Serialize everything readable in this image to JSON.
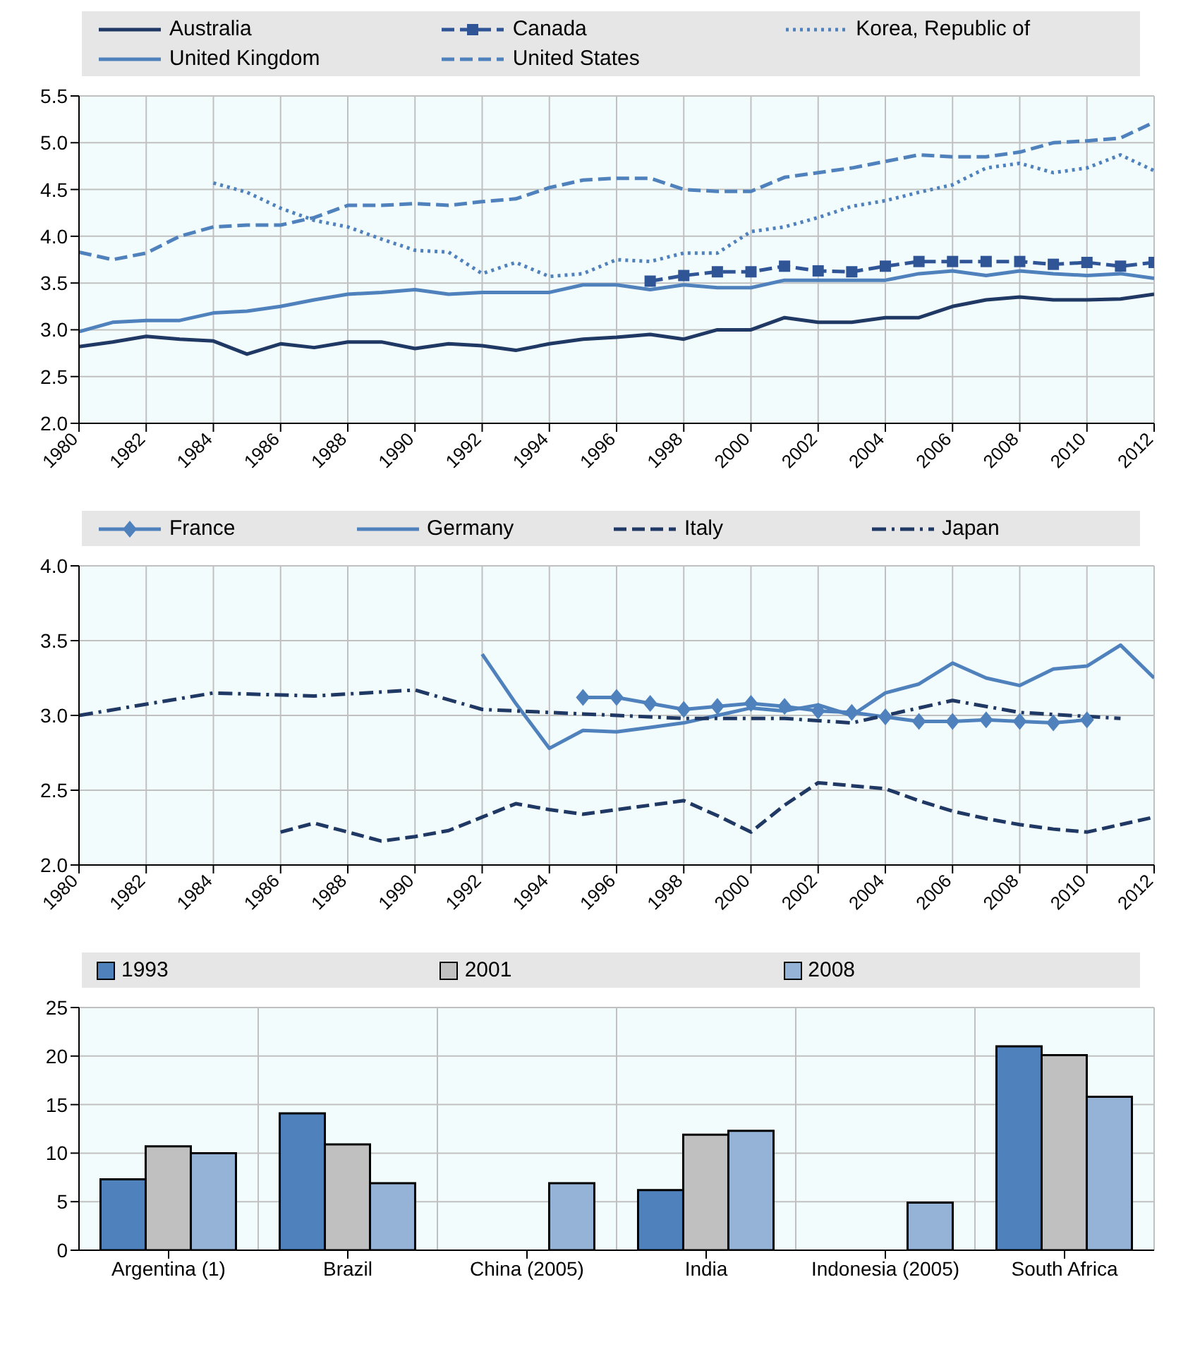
{
  "chart_data": [
    {
      "type": "line",
      "x": [
        1980,
        1981,
        1982,
        1983,
        1984,
        1985,
        1986,
        1987,
        1988,
        1989,
        1990,
        1991,
        1992,
        1993,
        1994,
        1995,
        1996,
        1997,
        1998,
        1999,
        2000,
        2001,
        2002,
        2003,
        2004,
        2005,
        2006,
        2007,
        2008,
        2009,
        2010,
        2011,
        2012
      ],
      "series": [
        {
          "name": "Australia",
          "color": "#1f3864",
          "line_style": "solid",
          "marker": "none",
          "values": [
            2.82,
            2.87,
            2.93,
            2.9,
            2.88,
            2.74,
            2.85,
            2.81,
            2.87,
            2.87,
            2.8,
            2.85,
            2.83,
            2.78,
            2.85,
            2.9,
            2.92,
            2.95,
            2.9,
            3.0,
            3.0,
            3.13,
            3.08,
            3.08,
            3.13,
            3.13,
            3.25,
            3.32,
            3.35,
            3.32,
            3.32,
            3.33,
            3.38
          ]
        },
        {
          "name": "Canada",
          "color": "#2f5597",
          "line_style": "dashed",
          "marker": "square",
          "values": [
            null,
            null,
            null,
            null,
            null,
            null,
            null,
            null,
            null,
            null,
            null,
            null,
            null,
            null,
            null,
            null,
            null,
            3.52,
            3.58,
            3.62,
            3.62,
            3.68,
            3.63,
            3.62,
            3.68,
            3.73,
            3.73,
            3.73,
            3.73,
            3.7,
            3.72,
            3.68,
            3.72
          ]
        },
        {
          "name": "Korea, Republic of",
          "color": "#4f81bd",
          "line_style": "dotted",
          "marker": "none",
          "values": [
            null,
            null,
            null,
            null,
            4.57,
            4.47,
            4.3,
            4.17,
            4.1,
            3.97,
            3.85,
            3.83,
            3.6,
            3.72,
            3.57,
            3.6,
            3.75,
            3.73,
            3.82,
            3.82,
            4.05,
            4.1,
            4.2,
            4.32,
            4.38,
            4.47,
            4.55,
            4.73,
            4.78,
            4.68,
            4.73,
            4.87,
            4.7
          ]
        },
        {
          "name": "United Kingdom",
          "color": "#4f81bd",
          "line_style": "solid",
          "marker": "none",
          "values": [
            2.98,
            3.08,
            3.1,
            3.1,
            3.18,
            3.2,
            3.25,
            3.32,
            3.38,
            3.4,
            3.43,
            3.38,
            3.4,
            3.4,
            3.4,
            3.48,
            3.48,
            3.43,
            3.48,
            3.45,
            3.45,
            3.53,
            3.53,
            3.53,
            3.53,
            3.6,
            3.63,
            3.58,
            3.63,
            3.6,
            3.58,
            3.6,
            3.55
          ]
        },
        {
          "name": "United States",
          "color": "#4f81bd",
          "line_style": "dashed",
          "marker": "none",
          "values": [
            3.83,
            3.75,
            3.82,
            4.0,
            4.1,
            4.12,
            4.12,
            4.2,
            4.33,
            4.33,
            4.35,
            4.33,
            4.37,
            4.4,
            4.52,
            4.6,
            4.62,
            4.62,
            4.5,
            4.48,
            4.48,
            4.63,
            4.68,
            4.73,
            4.8,
            4.87,
            4.85,
            4.85,
            4.9,
            5.0,
            5.02,
            5.05,
            5.22
          ]
        }
      ],
      "xlim": [
        1980,
        2012
      ],
      "xticks": [
        1980,
        1982,
        1984,
        1986,
        1988,
        1990,
        1992,
        1994,
        1996,
        1998,
        2000,
        2002,
        2004,
        2006,
        2008,
        2010,
        2012
      ],
      "ylim": [
        2,
        5.5
      ],
      "yticks": [
        {
          "value": 2,
          "label": "2.0"
        },
        {
          "value": 2.5,
          "label": "2.5"
        },
        {
          "value": 3,
          "label": "3.0"
        },
        {
          "value": 3.5,
          "label": "3.5"
        },
        {
          "value": 4,
          "label": "4.0"
        },
        {
          "value": 4.5,
          "label": "4.5"
        },
        {
          "value": 5,
          "label": "5.0"
        },
        {
          "value": 5.5,
          "label": "5.5"
        }
      ],
      "grid": true,
      "legend": "top"
    },
    {
      "type": "line",
      "series": [
        {
          "name": "France",
          "color": "#4f81bd",
          "line_style": "solid",
          "marker": "diamond",
          "x": [
            1995,
            1996,
            1997,
            1998,
            1999,
            2000,
            2001,
            2002,
            2003,
            2004,
            2005,
            2006,
            2007,
            2008,
            2009,
            2010
          ],
          "values": [
            3.12,
            3.12,
            3.08,
            3.04,
            3.06,
            3.08,
            3.06,
            3.03,
            3.02,
            2.99,
            2.96,
            2.96,
            2.97,
            2.96,
            2.95,
            2.97
          ]
        },
        {
          "name": "Germany",
          "color": "#4f81bd",
          "line_style": "solid",
          "marker": "none",
          "x": [
            1992,
            1993,
            1994,
            1995,
            1996,
            1997,
            1998,
            1999,
            2000,
            2001,
            2002,
            2003,
            2004,
            2005,
            2006,
            2007,
            2008,
            2009,
            2010,
            2011,
            2012
          ],
          "values": [
            3.41,
            3.08,
            2.78,
            2.9,
            2.89,
            2.92,
            2.95,
            3.0,
            3.05,
            3.03,
            3.07,
            3.0,
            3.15,
            3.21,
            3.35,
            3.25,
            3.2,
            3.31,
            3.33,
            3.47,
            3.25
          ]
        },
        {
          "name": "Italy",
          "color": "#1f3864",
          "line_style": "dashed",
          "marker": "none",
          "x": [
            1986,
            1987,
            1988,
            1989,
            1990,
            1991,
            1992,
            1993,
            1994,
            1995,
            1996,
            1997,
            1998,
            1999,
            2000,
            2001,
            2002,
            2003,
            2004,
            2005,
            2006,
            2007,
            2008,
            2009,
            2010,
            2011,
            2012
          ],
          "values": [
            2.22,
            2.28,
            2.22,
            2.16,
            2.19,
            2.23,
            2.32,
            2.41,
            2.37,
            2.34,
            2.37,
            2.4,
            2.43,
            2.33,
            2.22,
            2.4,
            2.55,
            2.53,
            2.51,
            2.43,
            2.36,
            2.31,
            2.27,
            2.24,
            2.22,
            2.27,
            2.32
          ]
        },
        {
          "name": "Japan",
          "color": "#1f3864",
          "line_style": "dashdot",
          "marker": "none",
          "x": [
            1980,
            1984,
            1987,
            1990,
            1992,
            1995,
            1998,
            2001,
            2003,
            2006,
            2008,
            2011
          ],
          "values": [
            3.0,
            3.15,
            3.13,
            3.17,
            3.04,
            3.01,
            2.98,
            2.98,
            2.95,
            3.1,
            3.02,
            2.98
          ]
        }
      ],
      "xlim": [
        1980,
        2012
      ],
      "xticks": [
        1980,
        1982,
        1984,
        1986,
        1988,
        1990,
        1992,
        1994,
        1996,
        1998,
        2000,
        2002,
        2004,
        2006,
        2008,
        2010,
        2012
      ],
      "ylim": [
        2,
        4
      ],
      "yticks": [
        {
          "value": 2,
          "label": "2.0"
        },
        {
          "value": 2.5,
          "label": "2.5"
        },
        {
          "value": 3,
          "label": "3.0"
        },
        {
          "value": 3.5,
          "label": "3.5"
        },
        {
          "value": 4,
          "label": "4.0"
        }
      ],
      "grid": true,
      "legend": "top"
    },
    {
      "type": "bar",
      "categories": [
        "Argentina (1)",
        "Brazil",
        "China (2005)",
        "India",
        "Indonesia (2005)",
        "South Africa"
      ],
      "series": [
        {
          "name": "1993",
          "color": "#4f81bd",
          "values": [
            7.3,
            14.1,
            null,
            6.2,
            null,
            21.0
          ]
        },
        {
          "name": "2001",
          "color": "#c0c0c0",
          "values": [
            10.7,
            10.9,
            null,
            11.9,
            null,
            20.1
          ]
        },
        {
          "name": "2008",
          "color": "#95b3d7",
          "values": [
            10.0,
            6.9,
            6.9,
            12.3,
            4.9,
            15.8
          ]
        }
      ],
      "ylim": [
        0,
        25
      ],
      "yticks": [
        0,
        5,
        10,
        15,
        20,
        25
      ],
      "grid": true,
      "legend": "top"
    }
  ]
}
